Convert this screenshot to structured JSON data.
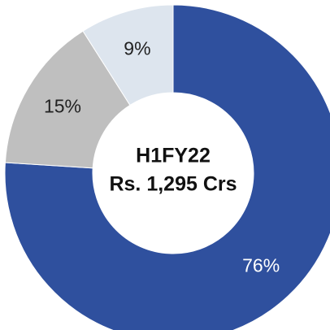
{
  "chart_data": {
    "type": "pie",
    "values": [
      76,
      15,
      9
    ],
    "value_labels": [
      "76%",
      "15%",
      "9%"
    ],
    "colors": [
      "#2f509e",
      "#bfbfbf",
      "#dde5ee"
    ],
    "label_colors": [
      "#ffffff",
      "#222222",
      "#222222"
    ],
    "annotations": [
      "H1FY22",
      "Rs. 1,295 Crs"
    ]
  }
}
